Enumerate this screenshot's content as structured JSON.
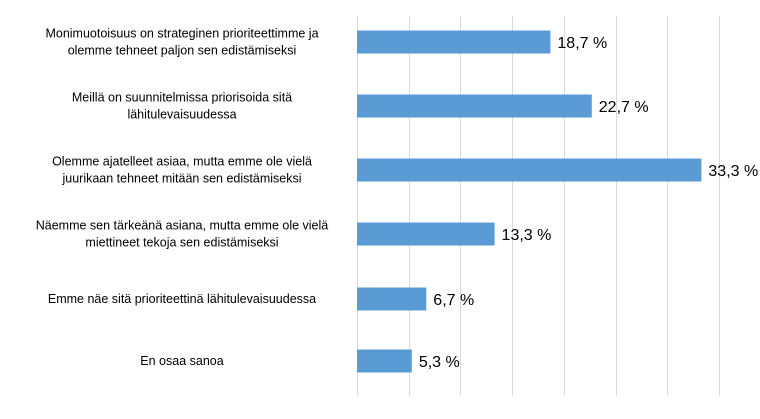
{
  "chart_data": {
    "type": "bar",
    "orientation": "horizontal",
    "categories": [
      [
        "Monimuotoisuus on strateginen prioriteettimme ja",
        "olemme tehneet paljon sen edistämiseksi"
      ],
      [
        "Meillä on suunnitelmissa priorisoida sitä",
        "lähitulevaisuudessa"
      ],
      [
        "Olemme ajatelleet asiaa, mutta emme ole vielä",
        "juurikaan tehneet mitään sen  edistämiseksi"
      ],
      [
        "Näemme sen tärkeänä asiana, mutta emme ole vielä",
        "miettineet tekoja sen edistämiseksi"
      ],
      [
        "Emme näe sitä prioriteettinä lähitulevaisuudessa"
      ],
      [
        "En osaa sanoa"
      ]
    ],
    "values": [
      18.7,
      22.7,
      33.3,
      13.3,
      6.7,
      5.3
    ],
    "value_labels": [
      "18,7 %",
      "22,7 %",
      "33,3 %",
      "13,3 %",
      "6,7 %",
      "5,3 %"
    ],
    "xlim": [
      0,
      35
    ],
    "gridlines": [
      0,
      5,
      10,
      15,
      20,
      25,
      30,
      35
    ],
    "grid": true,
    "bar_color": "#5B9BD5",
    "grid_color": "#D9D9D9"
  }
}
